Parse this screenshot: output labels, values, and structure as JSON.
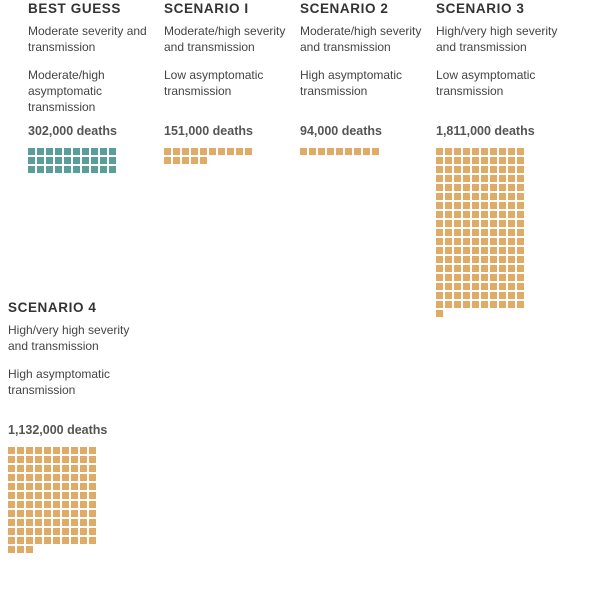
{
  "colors": {
    "best_guess": "#5a9e9b",
    "scenario": "#e0aa67"
  },
  "chart_data": {
    "type": "waffle",
    "unit_note": "",
    "series": [
      {
        "title": "BEST GUESS",
        "line1": "Moderate severity and transmission",
        "line2": "Moderate/high asymptomatic transmission",
        "deaths_label": "302,000 deaths",
        "deaths": 302000,
        "squares": 30,
        "color_key": "best_guess"
      },
      {
        "title": "SCENARIO I",
        "line1": "Moderate/high severity and transmission",
        "line2": "Low asymptomatic transmission",
        "deaths_label": "151,000 deaths",
        "deaths": 151000,
        "squares": 15,
        "color_key": "scenario"
      },
      {
        "title": "SCENARIO 2",
        "line1": "Moderate/high severity and transmission",
        "line2": "High asymptomatic transmission",
        "deaths_label": "94,000 deaths",
        "deaths": 94000,
        "squares": 9,
        "color_key": "scenario"
      },
      {
        "title": "SCENARIO 3",
        "line1": "High/very high severity and transmission",
        "line2": "Low asymptomatic transmission",
        "deaths_label": "1,811,000 deaths",
        "deaths": 1811000,
        "squares": 181,
        "color_key": "scenario"
      },
      {
        "title": "SCENARIO 4",
        "line1": "High/very high severity and transmission",
        "line2": "High asymptomatic transmission",
        "deaths_label": "1,132,000 deaths",
        "deaths": 1132000,
        "squares": 113,
        "color_key": "scenario"
      }
    ]
  }
}
